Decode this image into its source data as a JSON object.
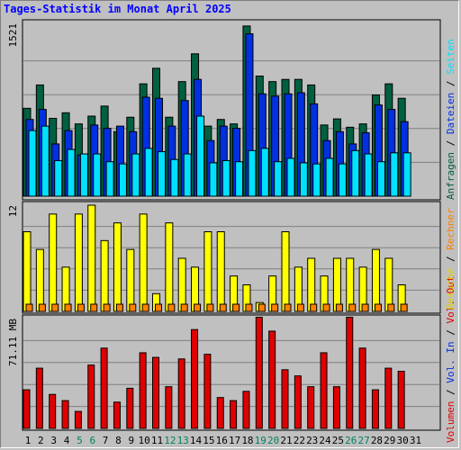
{
  "title": "Tages-Statistik im Monat April 2025",
  "colors": {
    "background": "#c0c0c0",
    "title": "#0000ff",
    "anfragen": "#006040",
    "dateien": "#0030e0",
    "seiten": "#00e0ff",
    "besuche": "#ffff00",
    "rechner": "#ff8000",
    "volumen": "#e00000",
    "grid": "#808080",
    "weekend_label": "#008060"
  },
  "legend": {
    "top": [
      {
        "text": "Anfragen",
        "color": "#006040"
      },
      {
        "text": "Dateien",
        "color": "#0030e0"
      },
      {
        "text": "Seiten",
        "color": "#00e0ff"
      }
    ],
    "middle": [
      {
        "text": "Besuche",
        "color": "#e0d000"
      },
      {
        "text": "Rechner",
        "color": "#ff8000"
      }
    ],
    "bottom": [
      {
        "text": "Volumen",
        "color": "#e00000"
      },
      {
        "text": "Vol. In",
        "color": "#0030e0"
      },
      {
        "text": "Vol. Out",
        "color": "#e00000"
      }
    ],
    "separator": " / "
  },
  "chart_data": [
    {
      "type": "bar",
      "panel": "requests",
      "ylabel": "1521",
      "ymax": 1521,
      "x": [
        1,
        2,
        3,
        4,
        5,
        6,
        7,
        8,
        9,
        10,
        11,
        12,
        13,
        14,
        15,
        16,
        17,
        18,
        19,
        20,
        21,
        22,
        23,
        24,
        25,
        26,
        27,
        28,
        29,
        30
      ],
      "series": [
        {
          "name": "Anfragen",
          "color": "#006040",
          "values": [
            790,
            1000,
            700,
            750,
            650,
            720,
            810,
            580,
            710,
            1010,
            1150,
            710,
            1030,
            1280,
            630,
            690,
            650,
            1530,
            1080,
            1030,
            1050,
            1050,
            1000,
            640,
            695,
            620,
            650,
            910,
            1010,
            880
          ]
        },
        {
          "name": "Dateien",
          "color": "#0030e0",
          "values": [
            690,
            780,
            470,
            590,
            370,
            640,
            610,
            630,
            580,
            890,
            880,
            630,
            860,
            1050,
            500,
            630,
            610,
            1460,
            920,
            900,
            920,
            930,
            830,
            500,
            580,
            470,
            570,
            820,
            780,
            670
          ]
        },
        {
          "name": "Seiten",
          "color": "#00e0ff",
          "values": [
            590,
            630,
            320,
            420,
            380,
            380,
            310,
            290,
            380,
            430,
            400,
            330,
            380,
            720,
            300,
            320,
            310,
            410,
            430,
            310,
            340,
            300,
            290,
            340,
            290,
            410,
            380,
            310,
            390,
            390
          ]
        }
      ]
    },
    {
      "type": "bar",
      "panel": "visits",
      "ylabel": "12",
      "ymax": 12,
      "x": [
        1,
        2,
        3,
        4,
        5,
        6,
        7,
        8,
        9,
        10,
        11,
        12,
        13,
        14,
        15,
        16,
        17,
        18,
        19,
        20,
        21,
        22,
        23,
        24,
        25,
        26,
        27,
        28,
        29,
        30
      ],
      "series": [
        {
          "name": "Besuche",
          "color": "#ffff00",
          "values": [
            9,
            7,
            11,
            5,
            11,
            12,
            8,
            10,
            7,
            11,
            2,
            10,
            6,
            5,
            9,
            9,
            4,
            3,
            1,
            4,
            9,
            5,
            6,
            4,
            6,
            6,
            5,
            7,
            6,
            3
          ]
        },
        {
          "name": "Rechner",
          "color": "#ff8000",
          "values": [
            1,
            1,
            1,
            1,
            1,
            1,
            1,
            1,
            1,
            1,
            1,
            1,
            1,
            1,
            1,
            1,
            1,
            1,
            1,
            1,
            1,
            1,
            1,
            1,
            1,
            1,
            1,
            1,
            1,
            1
          ]
        }
      ]
    },
    {
      "type": "bar",
      "panel": "volume",
      "ylabel": "71.11 MB",
      "ymax": 71.11,
      "x": [
        1,
        2,
        3,
        4,
        5,
        6,
        7,
        8,
        9,
        10,
        11,
        12,
        13,
        14,
        15,
        16,
        17,
        18,
        19,
        20,
        21,
        22,
        23,
        24,
        25,
        26,
        27,
        28,
        29,
        30
      ],
      "series": [
        {
          "name": "Volumen",
          "color": "#e00000",
          "values": [
            25,
            39,
            22,
            18,
            11,
            41,
            52,
            17,
            26,
            49,
            46,
            27,
            45,
            64,
            48,
            20,
            18,
            24,
            72,
            63,
            38,
            34,
            27,
            49,
            27,
            72,
            52,
            25,
            39,
            37
          ]
        }
      ]
    }
  ],
  "x_labels": [
    "1",
    "2",
    "3",
    "4",
    "5",
    "6",
    "7",
    "8",
    "9",
    "10",
    "11",
    "12",
    "13",
    "14",
    "15",
    "16",
    "17",
    "18",
    "19",
    "20",
    "21",
    "22",
    "23",
    "24",
    "25",
    "26",
    "27",
    "28",
    "29",
    "30",
    "31"
  ],
  "weekend_days": [
    5,
    6,
    12,
    13,
    19,
    20,
    26,
    27
  ]
}
